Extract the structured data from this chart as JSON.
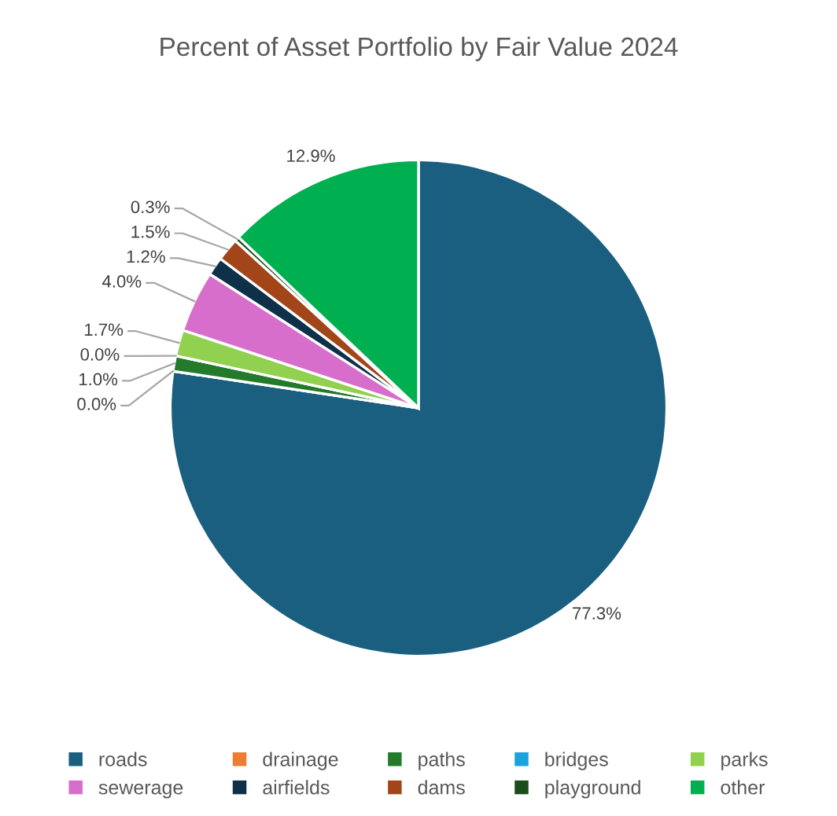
{
  "chart_data": {
    "type": "pie",
    "title": "Percent of Asset Portfolio by Fair Value 2024",
    "categories": [
      "roads",
      "drainage",
      "paths",
      "bridges",
      "parks",
      "sewerage",
      "airfields",
      "dams",
      "playground",
      "other"
    ],
    "values": [
      77.3,
      0.0,
      1.0,
      0.0,
      1.7,
      4.0,
      1.2,
      1.5,
      0.3,
      12.9
    ],
    "value_labels": [
      "77.3%",
      "0.0%",
      "1.0%",
      "0.0%",
      "1.7%",
      "4.0%",
      "1.2%",
      "1.5%",
      "0.3%",
      "12.9%"
    ],
    "colors": [
      "#1a5f80",
      "#ed7d31",
      "#237a2b",
      "#1aa3dc",
      "#92d050",
      "#d86ecc",
      "#0e3149",
      "#a2461a",
      "#1b4d1b",
      "#00b050"
    ],
    "legend": "bottom"
  }
}
